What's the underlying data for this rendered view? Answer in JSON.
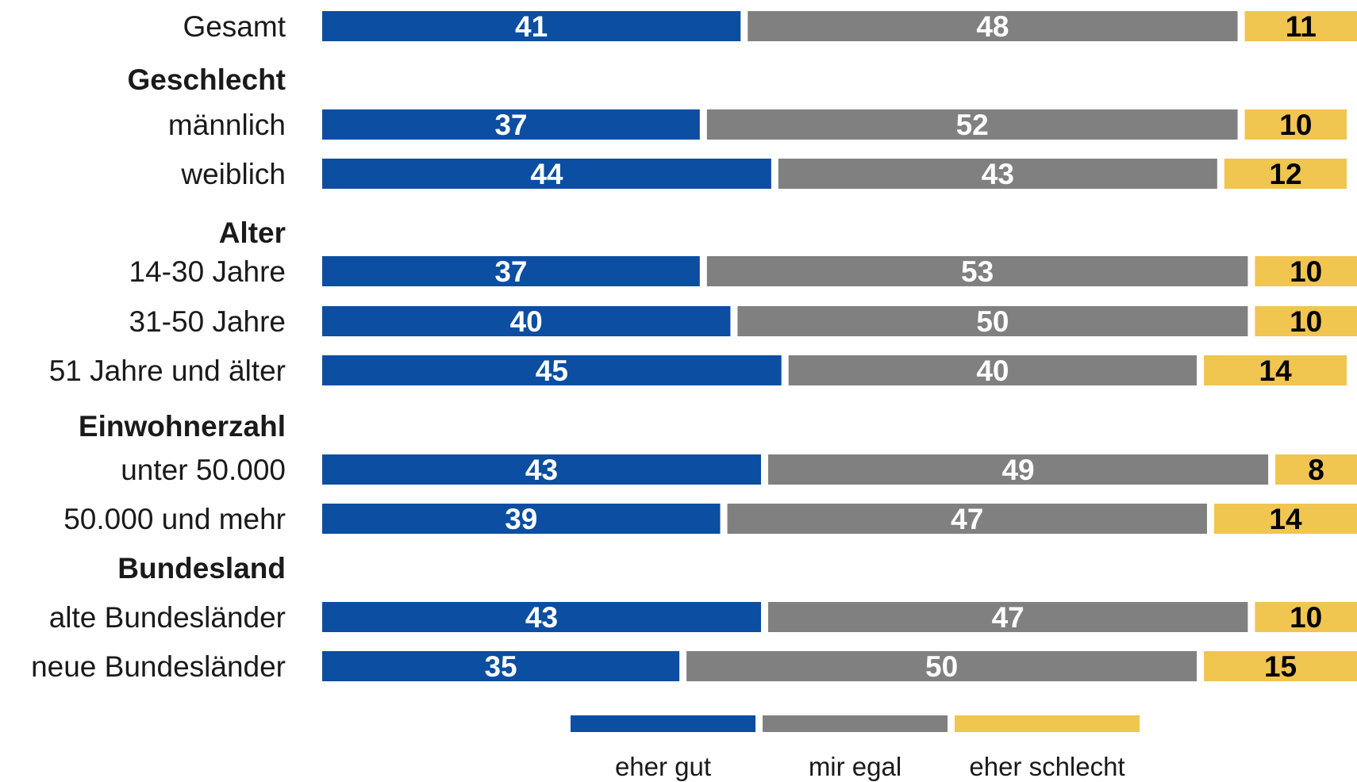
{
  "chart_data": {
    "type": "bar",
    "orientation": "horizontal",
    "stacked": true,
    "legend_position": "bottom",
    "grid": false,
    "xlim": [
      0,
      100
    ],
    "series": [
      {
        "name": "eher gut",
        "color": "#0B4EA2",
        "label_color": "#ffffff"
      },
      {
        "name": "mir egal",
        "color": "#808080",
        "label_color": "#ffffff"
      },
      {
        "name": "eher schlecht",
        "color": "#F0C550",
        "label_color": "#000000"
      }
    ],
    "rows": [
      {
        "kind": "item",
        "label": "Gesamt",
        "values": [
          41,
          48,
          11
        ]
      },
      {
        "kind": "group",
        "label": "Geschlecht"
      },
      {
        "kind": "item",
        "label": "männlich",
        "values": [
          37,
          52,
          10
        ]
      },
      {
        "kind": "item",
        "label": "weiblich",
        "values": [
          44,
          43,
          12
        ]
      },
      {
        "kind": "group",
        "label": "Alter"
      },
      {
        "kind": "item",
        "label": "14-30 Jahre",
        "values": [
          37,
          53,
          10
        ]
      },
      {
        "kind": "item",
        "label": "31-50 Jahre",
        "values": [
          40,
          50,
          10
        ]
      },
      {
        "kind": "item",
        "label": "51 Jahre und älter",
        "values": [
          45,
          40,
          14
        ]
      },
      {
        "kind": "group",
        "label": "Einwohnerzahl"
      },
      {
        "kind": "item",
        "label": "unter 50.000",
        "values": [
          43,
          49,
          8
        ]
      },
      {
        "kind": "item",
        "label": "50.000 und mehr",
        "values": [
          39,
          47,
          14
        ]
      },
      {
        "kind": "group",
        "label": "Bundesland"
      },
      {
        "kind": "item",
        "label": "alte Bundesländer",
        "values": [
          43,
          47,
          10
        ]
      },
      {
        "kind": "item",
        "label": "neue Bundesländer",
        "values": [
          35,
          50,
          15
        ]
      }
    ]
  }
}
